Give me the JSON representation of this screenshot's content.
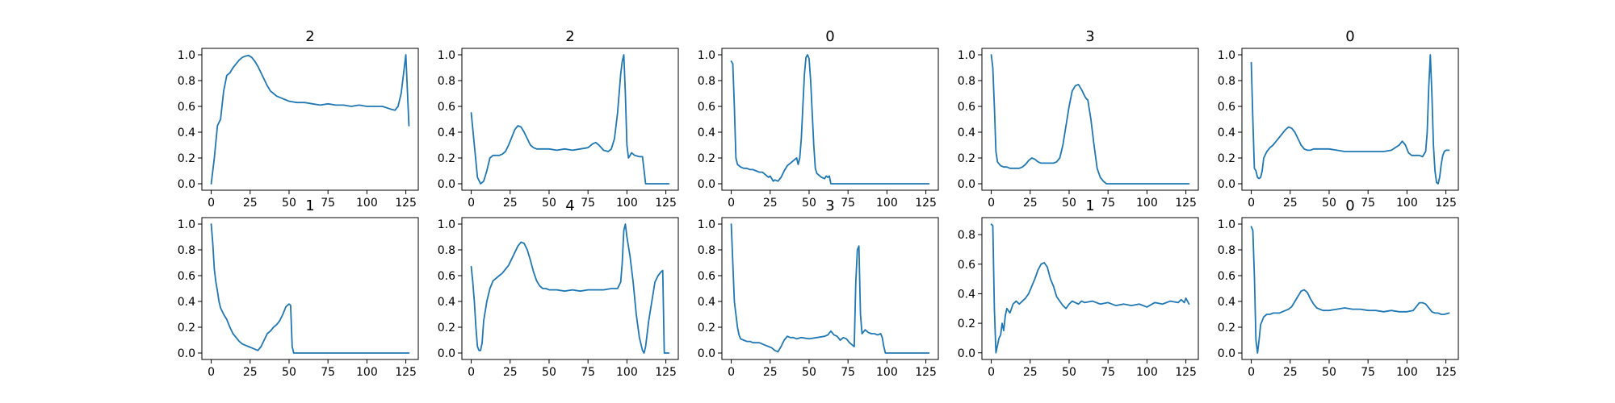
{
  "figure": {
    "line_color": "#1f77b4"
  },
  "chart_data": [
    {
      "type": "line",
      "title": "2",
      "xlim": [
        -6,
        133
      ],
      "ylim": [
        -0.05,
        1.05
      ],
      "xticks": [
        0,
        25,
        50,
        75,
        100,
        125
      ],
      "yticks": [
        0.0,
        0.2,
        0.4,
        0.6,
        0.8,
        1.0
      ],
      "x": [
        0,
        2,
        4,
        6,
        8,
        10,
        12,
        14,
        16,
        18,
        20,
        22,
        24,
        26,
        28,
        30,
        32,
        34,
        36,
        38,
        40,
        42,
        44,
        46,
        48,
        50,
        55,
        60,
        65,
        70,
        75,
        80,
        85,
        90,
        95,
        100,
        105,
        110,
        115,
        118,
        120,
        122,
        124,
        125,
        127
      ],
      "y": [
        0.0,
        0.2,
        0.45,
        0.5,
        0.72,
        0.84,
        0.86,
        0.9,
        0.93,
        0.96,
        0.98,
        0.99,
        0.995,
        0.98,
        0.95,
        0.91,
        0.86,
        0.81,
        0.76,
        0.72,
        0.7,
        0.68,
        0.67,
        0.66,
        0.65,
        0.64,
        0.63,
        0.63,
        0.62,
        0.61,
        0.62,
        0.61,
        0.61,
        0.6,
        0.61,
        0.6,
        0.6,
        0.6,
        0.58,
        0.57,
        0.6,
        0.7,
        0.9,
        1.0,
        0.45
      ]
    },
    {
      "type": "line",
      "title": "2",
      "xlim": [
        -6,
        133
      ],
      "ylim": [
        -0.05,
        1.05
      ],
      "xticks": [
        0,
        25,
        50,
        75,
        100,
        125
      ],
      "yticks": [
        0.0,
        0.2,
        0.4,
        0.6,
        0.8,
        1.0
      ],
      "x": [
        0,
        2,
        4,
        6,
        8,
        10,
        12,
        14,
        16,
        18,
        20,
        22,
        24,
        26,
        28,
        30,
        32,
        34,
        36,
        38,
        40,
        42,
        45,
        50,
        55,
        60,
        65,
        70,
        75,
        78,
        80,
        82,
        85,
        88,
        90,
        92,
        94,
        96,
        97,
        98,
        99,
        100,
        101,
        103,
        105,
        108,
        110,
        112,
        115,
        120,
        125,
        127
      ],
      "y": [
        0.55,
        0.3,
        0.05,
        0.0,
        0.02,
        0.1,
        0.2,
        0.22,
        0.22,
        0.22,
        0.23,
        0.25,
        0.3,
        0.36,
        0.42,
        0.45,
        0.44,
        0.4,
        0.35,
        0.3,
        0.28,
        0.27,
        0.27,
        0.27,
        0.26,
        0.27,
        0.26,
        0.27,
        0.28,
        0.31,
        0.32,
        0.3,
        0.26,
        0.25,
        0.27,
        0.35,
        0.55,
        0.85,
        0.95,
        1.0,
        0.7,
        0.3,
        0.2,
        0.24,
        0.22,
        0.21,
        0.21,
        0.0,
        0.0,
        0.0,
        0.0,
        0.0
      ]
    },
    {
      "type": "line",
      "title": "0",
      "xlim": [
        -6,
        133
      ],
      "ylim": [
        -0.05,
        1.05
      ],
      "xticks": [
        0,
        25,
        50,
        75,
        100,
        125
      ],
      "yticks": [
        0.0,
        0.2,
        0.4,
        0.6,
        0.8,
        1.0
      ],
      "x": [
        0,
        1,
        2,
        3,
        4,
        6,
        8,
        10,
        12,
        14,
        16,
        18,
        20,
        22,
        24,
        25,
        26,
        27,
        28,
        30,
        32,
        34,
        36,
        38,
        40,
        42,
        43,
        44,
        45,
        46,
        47,
        48,
        49,
        50,
        51,
        52,
        53,
        54,
        55,
        56,
        58,
        60,
        61,
        62,
        63,
        64,
        65,
        70,
        75,
        80,
        90,
        100,
        110,
        120,
        127
      ],
      "y": [
        0.95,
        0.93,
        0.6,
        0.2,
        0.15,
        0.13,
        0.12,
        0.12,
        0.11,
        0.11,
        0.1,
        0.09,
        0.09,
        0.07,
        0.05,
        0.06,
        0.04,
        0.02,
        0.03,
        0.02,
        0.05,
        0.1,
        0.14,
        0.16,
        0.18,
        0.2,
        0.15,
        0.2,
        0.35,
        0.6,
        0.85,
        0.98,
        1.0,
        0.97,
        0.8,
        0.55,
        0.3,
        0.12,
        0.08,
        0.07,
        0.05,
        0.04,
        0.06,
        0.05,
        0.06,
        0.0,
        0.0,
        0.0,
        0.0,
        0.0,
        0.0,
        0.0,
        0.0,
        0.0,
        0.0
      ]
    },
    {
      "type": "line",
      "title": "3",
      "xlim": [
        -6,
        133
      ],
      "ylim": [
        -0.05,
        1.05
      ],
      "xticks": [
        0,
        25,
        50,
        75,
        100,
        125
      ],
      "yticks": [
        0.0,
        0.2,
        0.4,
        0.6,
        0.8,
        1.0
      ],
      "x": [
        0,
        1,
        2,
        3,
        4,
        6,
        8,
        10,
        12,
        14,
        16,
        18,
        20,
        22,
        24,
        26,
        28,
        30,
        32,
        34,
        36,
        38,
        40,
        42,
        44,
        46,
        48,
        50,
        52,
        54,
        56,
        58,
        60,
        61,
        62,
        64,
        66,
        68,
        70,
        72,
        74,
        76,
        80,
        90,
        100,
        110,
        120,
        127
      ],
      "y": [
        1.0,
        0.9,
        0.6,
        0.25,
        0.17,
        0.14,
        0.13,
        0.13,
        0.12,
        0.12,
        0.12,
        0.12,
        0.13,
        0.15,
        0.18,
        0.2,
        0.19,
        0.17,
        0.16,
        0.16,
        0.16,
        0.16,
        0.16,
        0.17,
        0.2,
        0.3,
        0.45,
        0.6,
        0.72,
        0.76,
        0.77,
        0.73,
        0.68,
        0.66,
        0.65,
        0.5,
        0.3,
        0.12,
        0.05,
        0.02,
        0.0,
        0.0,
        0.0,
        0.0,
        0.0,
        0.0,
        0.0,
        0.0
      ]
    },
    {
      "type": "line",
      "title": "0",
      "xlim": [
        -6,
        133
      ],
      "ylim": [
        -0.05,
        1.05
      ],
      "xticks": [
        0,
        25,
        50,
        75,
        100,
        125
      ],
      "yticks": [
        0.0,
        0.2,
        0.4,
        0.6,
        0.8,
        1.0
      ],
      "x": [
        0,
        1,
        2,
        3,
        4,
        5,
        6,
        7,
        8,
        10,
        12,
        14,
        16,
        18,
        20,
        22,
        24,
        26,
        28,
        30,
        32,
        34,
        36,
        38,
        40,
        45,
        50,
        55,
        60,
        65,
        70,
        75,
        80,
        85,
        90,
        95,
        97,
        99,
        101,
        103,
        105,
        108,
        110,
        112,
        113,
        114,
        115,
        116,
        117,
        118,
        119,
        120,
        121,
        122,
        123,
        124,
        125,
        126,
        127
      ],
      "y": [
        0.94,
        0.5,
        0.12,
        0.1,
        0.05,
        0.04,
        0.05,
        0.1,
        0.2,
        0.25,
        0.28,
        0.3,
        0.33,
        0.36,
        0.39,
        0.42,
        0.44,
        0.43,
        0.4,
        0.35,
        0.3,
        0.27,
        0.26,
        0.26,
        0.27,
        0.27,
        0.27,
        0.26,
        0.25,
        0.25,
        0.25,
        0.25,
        0.25,
        0.25,
        0.26,
        0.3,
        0.33,
        0.3,
        0.24,
        0.22,
        0.22,
        0.22,
        0.21,
        0.25,
        0.4,
        0.75,
        1.0,
        0.7,
        0.3,
        0.1,
        0.01,
        0.0,
        0.05,
        0.15,
        0.22,
        0.25,
        0.26,
        0.26,
        0.26
      ]
    },
    {
      "type": "line",
      "title": "1",
      "xlim": [
        -6,
        133
      ],
      "ylim": [
        -0.05,
        1.05
      ],
      "xticks": [
        0,
        25,
        50,
        75,
        100,
        125
      ],
      "yticks": [
        0.0,
        0.2,
        0.4,
        0.6,
        0.8,
        1.0
      ],
      "x": [
        0,
        1,
        2,
        3,
        4,
        5,
        6,
        8,
        10,
        12,
        14,
        16,
        18,
        20,
        22,
        24,
        26,
        28,
        30,
        32,
        34,
        36,
        38,
        40,
        42,
        44,
        46,
        48,
        50,
        51,
        52,
        53,
        55,
        60,
        70,
        80,
        90,
        100,
        110,
        120,
        127
      ],
      "y": [
        1.0,
        0.85,
        0.65,
        0.55,
        0.48,
        0.4,
        0.35,
        0.3,
        0.26,
        0.2,
        0.15,
        0.12,
        0.09,
        0.07,
        0.06,
        0.05,
        0.04,
        0.03,
        0.02,
        0.05,
        0.1,
        0.15,
        0.17,
        0.2,
        0.22,
        0.25,
        0.3,
        0.36,
        0.38,
        0.37,
        0.05,
        0.0,
        0.0,
        0.0,
        0.0,
        0.0,
        0.0,
        0.0,
        0.0,
        0.0,
        0.0
      ]
    },
    {
      "type": "line",
      "title": "4",
      "xlim": [
        -6,
        133
      ],
      "ylim": [
        -0.05,
        1.05
      ],
      "xticks": [
        0,
        25,
        50,
        75,
        100,
        125
      ],
      "yticks": [
        0.0,
        0.2,
        0.4,
        0.6,
        0.8,
        1.0
      ],
      "x": [
        0,
        1,
        2,
        3,
        4,
        5,
        6,
        7,
        8,
        10,
        12,
        14,
        16,
        18,
        20,
        22,
        24,
        26,
        28,
        30,
        32,
        34,
        36,
        38,
        40,
        42,
        44,
        46,
        48,
        50,
        55,
        60,
        65,
        70,
        75,
        80,
        85,
        90,
        94,
        96,
        97,
        98,
        99,
        100,
        102,
        104,
        106,
        108,
        110,
        111,
        112,
        114,
        116,
        118,
        120,
        122,
        123,
        124,
        125,
        127
      ],
      "y": [
        0.67,
        0.55,
        0.4,
        0.2,
        0.05,
        0.02,
        0.02,
        0.08,
        0.25,
        0.4,
        0.5,
        0.56,
        0.58,
        0.6,
        0.62,
        0.65,
        0.68,
        0.73,
        0.78,
        0.83,
        0.86,
        0.85,
        0.8,
        0.72,
        0.63,
        0.56,
        0.52,
        0.5,
        0.5,
        0.49,
        0.49,
        0.48,
        0.49,
        0.48,
        0.49,
        0.49,
        0.49,
        0.5,
        0.5,
        0.55,
        0.7,
        0.95,
        1.0,
        0.9,
        0.75,
        0.55,
        0.3,
        0.12,
        0.02,
        0.0,
        0.05,
        0.25,
        0.4,
        0.55,
        0.6,
        0.63,
        0.64,
        0.0,
        0.0,
        0.0
      ]
    },
    {
      "type": "line",
      "title": "3",
      "xlim": [
        -6,
        133
      ],
      "ylim": [
        -0.05,
        1.05
      ],
      "xticks": [
        0,
        25,
        50,
        75,
        100,
        125
      ],
      "yticks": [
        0.0,
        0.2,
        0.4,
        0.6,
        0.8,
        1.0
      ],
      "x": [
        0,
        1,
        2,
        3,
        4,
        5,
        6,
        8,
        10,
        12,
        14,
        16,
        18,
        20,
        22,
        24,
        26,
        28,
        30,
        32,
        34,
        36,
        38,
        40,
        42,
        45,
        50,
        55,
        60,
        62,
        64,
        66,
        68,
        70,
        72,
        74,
        76,
        78,
        79,
        80,
        81,
        82,
        83,
        84,
        86,
        88,
        90,
        92,
        94,
        96,
        97,
        98,
        99,
        100,
        105,
        110,
        120,
        127
      ],
      "y": [
        1.0,
        0.7,
        0.4,
        0.3,
        0.2,
        0.14,
        0.11,
        0.1,
        0.09,
        0.09,
        0.08,
        0.08,
        0.08,
        0.07,
        0.06,
        0.05,
        0.04,
        0.02,
        0.01,
        0.05,
        0.1,
        0.13,
        0.12,
        0.12,
        0.11,
        0.12,
        0.11,
        0.12,
        0.13,
        0.14,
        0.17,
        0.14,
        0.13,
        0.1,
        0.12,
        0.11,
        0.08,
        0.06,
        0.05,
        0.55,
        0.8,
        0.83,
        0.3,
        0.15,
        0.18,
        0.16,
        0.15,
        0.15,
        0.14,
        0.15,
        0.12,
        0.05,
        0.0,
        0.0,
        0.0,
        0.0,
        0.0,
        0.0
      ]
    },
    {
      "type": "line",
      "title": "1",
      "xlim": [
        -6,
        133
      ],
      "ylim": [
        -0.045,
        0.915
      ],
      "xticks": [
        0,
        25,
        50,
        75,
        100,
        125
      ],
      "yticks": [
        0.0,
        0.2,
        0.4,
        0.6,
        0.8
      ],
      "x": [
        0,
        1,
        2,
        3,
        4,
        5,
        6,
        7,
        8,
        9,
        10,
        12,
        14,
        16,
        18,
        20,
        22,
        24,
        26,
        28,
        30,
        32,
        34,
        36,
        38,
        40,
        42,
        44,
        46,
        48,
        50,
        52,
        54,
        56,
        58,
        60,
        65,
        70,
        75,
        80,
        85,
        90,
        95,
        100,
        105,
        110,
        115,
        120,
        122,
        124,
        125,
        127
      ],
      "y": [
        0.87,
        0.86,
        0.3,
        0.0,
        0.05,
        0.1,
        0.12,
        0.2,
        0.15,
        0.25,
        0.3,
        0.27,
        0.33,
        0.35,
        0.33,
        0.35,
        0.37,
        0.4,
        0.45,
        0.5,
        0.56,
        0.6,
        0.61,
        0.58,
        0.5,
        0.45,
        0.38,
        0.35,
        0.32,
        0.3,
        0.33,
        0.35,
        0.34,
        0.33,
        0.35,
        0.34,
        0.35,
        0.33,
        0.34,
        0.32,
        0.33,
        0.32,
        0.33,
        0.31,
        0.34,
        0.33,
        0.35,
        0.34,
        0.36,
        0.34,
        0.37,
        0.33
      ]
    },
    {
      "type": "line",
      "title": "0",
      "xlim": [
        -6,
        133
      ],
      "ylim": [
        -0.05,
        1.05
      ],
      "xticks": [
        0,
        25,
        50,
        75,
        100,
        125
      ],
      "yticks": [
        0.0,
        0.2,
        0.4,
        0.6,
        0.8,
        1.0
      ],
      "x": [
        0,
        1,
        2,
        3,
        4,
        5,
        6,
        8,
        10,
        12,
        14,
        16,
        18,
        20,
        22,
        24,
        26,
        28,
        30,
        32,
        34,
        36,
        38,
        40,
        42,
        44,
        46,
        48,
        50,
        55,
        60,
        65,
        70,
        75,
        80,
        85,
        90,
        95,
        100,
        104,
        106,
        108,
        110,
        112,
        114,
        116,
        118,
        120,
        122,
        124,
        127
      ],
      "y": [
        0.98,
        0.95,
        0.6,
        0.1,
        0.0,
        0.1,
        0.22,
        0.28,
        0.3,
        0.3,
        0.31,
        0.31,
        0.31,
        0.32,
        0.33,
        0.34,
        0.36,
        0.4,
        0.44,
        0.48,
        0.49,
        0.47,
        0.42,
        0.38,
        0.35,
        0.34,
        0.33,
        0.33,
        0.33,
        0.34,
        0.35,
        0.34,
        0.34,
        0.33,
        0.33,
        0.32,
        0.33,
        0.32,
        0.32,
        0.33,
        0.36,
        0.39,
        0.39,
        0.38,
        0.35,
        0.32,
        0.31,
        0.31,
        0.3,
        0.3,
        0.31
      ]
    }
  ]
}
